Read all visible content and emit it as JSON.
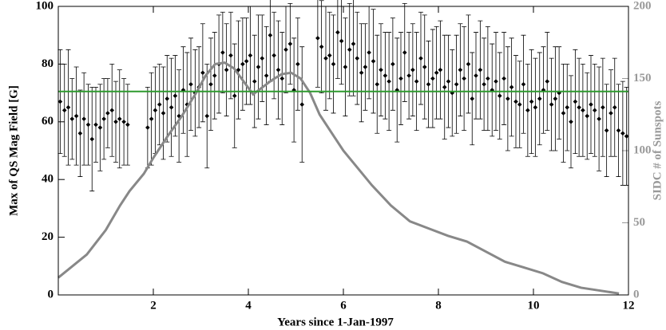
{
  "chart_data": {
    "type": "errorbar",
    "xlabel": "Years since 1-Jan-1997",
    "ylabel": "Max of QS Mag Field [G]",
    "y2label": "SIDC # of Sunspots",
    "xlim": [
      0,
      12
    ],
    "ylim": [
      0,
      100
    ],
    "y2lim": [
      0,
      200
    ],
    "xticks": [
      2,
      4,
      6,
      8,
      10,
      12
    ],
    "yticks": [
      0,
      20,
      40,
      60,
      80,
      100
    ],
    "y2ticks": [
      0,
      50,
      100,
      150,
      200
    ],
    "hline": {
      "value": 70.5,
      "color": "#2e9a2e"
    },
    "series": [
      {
        "color": "#000000",
        "x": [
          0.04,
          0.13,
          0.21,
          0.29,
          0.38,
          0.46,
          0.54,
          0.63,
          0.71,
          0.79,
          0.88,
          0.96,
          1.04,
          1.13,
          1.21,
          1.29,
          1.38,
          1.46,
          1.88,
          1.96,
          2.04,
          2.13,
          2.21,
          2.29,
          2.38,
          2.46,
          2.54,
          2.63,
          2.71,
          2.79,
          2.88,
          2.96,
          3.04,
          3.13,
          3.21,
          3.29,
          3.38,
          3.46,
          3.54,
          3.63,
          3.71,
          3.79,
          3.88,
          3.96,
          4.04,
          4.13,
          4.21,
          4.29,
          4.38,
          4.46,
          4.54,
          4.63,
          4.71,
          4.79,
          4.88,
          4.96,
          5.04,
          5.13,
          5.46,
          5.54,
          5.63,
          5.71,
          5.79,
          5.88,
          5.96,
          6.04,
          6.13,
          6.21,
          6.29,
          6.38,
          6.46,
          6.54,
          6.63,
          6.71,
          6.79,
          6.88,
          6.96,
          7.04,
          7.13,
          7.21,
          7.29,
          7.38,
          7.46,
          7.54,
          7.63,
          7.71,
          7.79,
          7.88,
          7.96,
          8.04,
          8.13,
          8.21,
          8.29,
          8.38,
          8.46,
          8.54,
          8.63,
          8.71,
          8.79,
          8.88,
          8.96,
          9.04,
          9.13,
          9.21,
          9.29,
          9.38,
          9.46,
          9.54,
          9.63,
          9.71,
          9.79,
          9.88,
          9.96,
          10.04,
          10.13,
          10.21,
          10.29,
          10.38,
          10.46,
          10.54,
          10.63,
          10.71,
          10.79,
          10.88,
          10.96,
          11.04,
          11.13,
          11.21,
          11.29,
          11.38,
          11.46,
          11.54,
          11.63,
          11.71,
          11.79,
          11.88,
          11.96
        ],
        "values": [
          67,
          64,
          65,
          61,
          62,
          56,
          61,
          59,
          54,
          59,
          58,
          61,
          63,
          64,
          60,
          61,
          60,
          59,
          58,
          61,
          64,
          66,
          63,
          68,
          65,
          69,
          62,
          71,
          66,
          73,
          70,
          72,
          77,
          62,
          73,
          76,
          80,
          84,
          78,
          83,
          69,
          78,
          80,
          81,
          83,
          74,
          79,
          82,
          76,
          90,
          83,
          78,
          75,
          85,
          87,
          71,
          80,
          66,
          89,
          86,
          82,
          83,
          80,
          91,
          88,
          79,
          85,
          87,
          82,
          77,
          79,
          84,
          81,
          73,
          78,
          76,
          74,
          80,
          71,
          75,
          84,
          76,
          78,
          74,
          82,
          79,
          73,
          75,
          77,
          78,
          72,
          74,
          70,
          73,
          78,
          75,
          80,
          68,
          76,
          78,
          73,
          75,
          71,
          74,
          69,
          75,
          68,
          72,
          67,
          66,
          73,
          64,
          67,
          65,
          68,
          71,
          74,
          66,
          68,
          70,
          63,
          65,
          60,
          67,
          65,
          64,
          62,
          66,
          64,
          61,
          65,
          57,
          63,
          65,
          57,
          56,
          55
        ],
        "errors": [
          18,
          16,
          20,
          14,
          17,
          15,
          16,
          14,
          18,
          13,
          15,
          14,
          12,
          16,
          14,
          17,
          15,
          14,
          14,
          16,
          15,
          14,
          16,
          15,
          17,
          14,
          16,
          15,
          18,
          16,
          15,
          14,
          17,
          18,
          16,
          15,
          17,
          14,
          16,
          15,
          18,
          17,
          16,
          15,
          17,
          16,
          18,
          15,
          17,
          16,
          15,
          17,
          16,
          15,
          14,
          18,
          16,
          20,
          17,
          16,
          18,
          15,
          17,
          16,
          15,
          17,
          16,
          18,
          16,
          17,
          15,
          16,
          18,
          17,
          16,
          15,
          17,
          16,
          18,
          16,
          17,
          15,
          16,
          17,
          16,
          18,
          15,
          17,
          16,
          17,
          18,
          16,
          15,
          17,
          16,
          18,
          17,
          16,
          15,
          17,
          16,
          18,
          16,
          17,
          15,
          16,
          18,
          17,
          16,
          15,
          17,
          16,
          18,
          17,
          16,
          15,
          17,
          16,
          18,
          16,
          17,
          15,
          16,
          18,
          17,
          16,
          15,
          17,
          16,
          18,
          17,
          16,
          15,
          17,
          16,
          18,
          17
        ]
      },
      {
        "axis": "y2",
        "color": "#888888",
        "x": [
          0,
          0.3,
          0.6,
          1.0,
          1.3,
          1.5,
          1.8,
          2.0,
          2.3,
          2.6,
          2.9,
          3.1,
          3.3,
          3.5,
          3.7,
          3.9,
          4.1,
          4.3,
          4.5,
          4.7,
          4.9,
          5.1,
          5.3,
          5.5,
          5.8,
          6.0,
          6.3,
          6.6,
          7.0,
          7.4,
          7.8,
          8.2,
          8.6,
          9.0,
          9.4,
          9.8,
          10.2,
          10.6,
          11.0,
          11.4,
          11.8
        ],
        "values": [
          12,
          20,
          28,
          45,
          62,
          72,
          84,
          95,
          110,
          124,
          140,
          152,
          160,
          161,
          157,
          148,
          139,
          144,
          149,
          153,
          154,
          150,
          140,
          125,
          110,
          100,
          88,
          76,
          62,
          51,
          46,
          41,
          37,
          30,
          23,
          19,
          15,
          9,
          5,
          3,
          1
        ]
      }
    ]
  }
}
